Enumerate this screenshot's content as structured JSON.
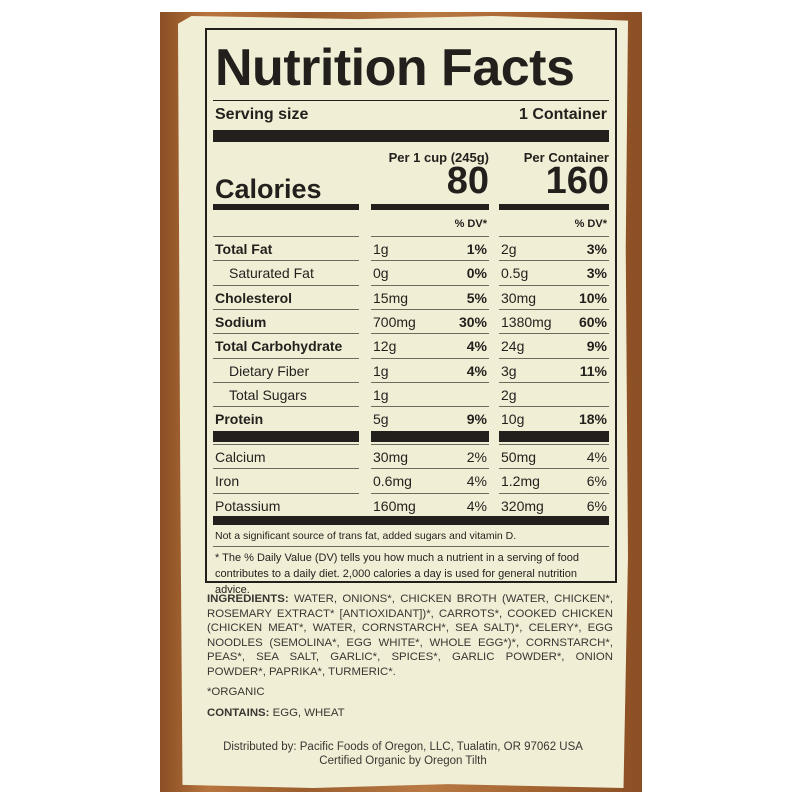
{
  "label": {
    "title": "Nutrition Facts",
    "serving_size_label": "Serving size",
    "serving_size_value": "1 Container",
    "col1_header": "Per 1 cup (245g)",
    "col2_header": "Per Container",
    "calories_label": "Calories",
    "calories_col1": "80",
    "calories_col2": "160",
    "dv_header": "% DV*",
    "nutrients": [
      {
        "name": "Total Fat",
        "bold": true,
        "a": "1g",
        "adv": "1%",
        "b": "2g",
        "bdv": "3%"
      },
      {
        "name": "Saturated Fat",
        "bold": false,
        "a": "0g",
        "adv": "0%",
        "b": "0.5g",
        "bdv": "3%"
      },
      {
        "name": "Cholesterol",
        "bold": true,
        "a": "15mg",
        "adv": "5%",
        "b": "30mg",
        "bdv": "10%"
      },
      {
        "name": "Sodium",
        "bold": true,
        "a": "700mg",
        "adv": "30%",
        "b": "1380mg",
        "bdv": "60%"
      },
      {
        "name": "Total Carbohydrate",
        "bold": true,
        "a": "12g",
        "adv": "4%",
        "b": "24g",
        "bdv": "9%"
      },
      {
        "name": "Dietary Fiber",
        "bold": false,
        "a": "1g",
        "adv": "4%",
        "b": "3g",
        "bdv": "11%"
      },
      {
        "name": "Total Sugars",
        "bold": false,
        "a": "1g",
        "adv": "",
        "b": "2g",
        "bdv": ""
      },
      {
        "name": "Protein",
        "bold": true,
        "a": "5g",
        "adv": "9%",
        "b": "10g",
        "bdv": "18%"
      }
    ],
    "minerals": [
      {
        "name": "Calcium",
        "a": "30mg",
        "adv": "2%",
        "b": "50mg",
        "bdv": "4%"
      },
      {
        "name": "Iron",
        "a": "0.6mg",
        "adv": "4%",
        "b": "1.2mg",
        "bdv": "6%"
      },
      {
        "name": "Potassium",
        "a": "160mg",
        "adv": "4%",
        "b": "320mg",
        "bdv": "6%"
      }
    ],
    "note": "Not a significant source of trans fat, added sugars and vitamin D.",
    "footnote": "* The % Daily Value (DV) tells you how much a nutrient in a serving of food contributes to a daily diet. 2,000 calories a day is used for general nutrition advice."
  },
  "ingredients": {
    "label": "INGREDIENTS:",
    "text": "WATER, ONIONS*, CHICKEN BROTH (WATER, CHICKEN*, ROSEMARY EXTRACT* [ANTIOXIDANT])*, CARROTS*, COOKED CHICKEN (CHICKEN MEAT*, WATER, CORNSTARCH*, SEA SALT)*, CELERY*, EGG NOODLES (SEMOLINA*, EGG WHITE*, WHOLE EGG*)*, CORNSTARCH*, PEAS*, SEA SALT, GARLIC*, SPICES*, GARLIC POWDER*, ONION POWDER*, PAPRIKA*, TURMERIC*.",
    "organic": "*ORGANIC",
    "contains_label": "CONTAINS:",
    "contains_text": "EGG, WHEAT"
  },
  "footer": {
    "distributor": "Distributed by: Pacific Foods of Oregon, LLC, Tualatin, OR 97062 USA",
    "certification": "Certified Organic by Oregon Tilth"
  }
}
